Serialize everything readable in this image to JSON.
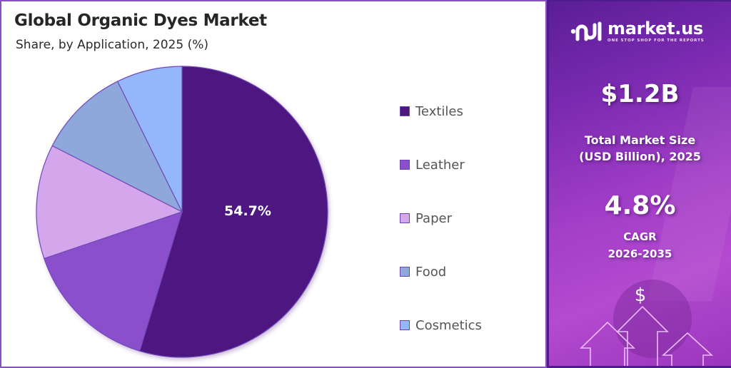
{
  "header": {
    "title": "Global Organic Dyes Market",
    "subtitle": "Share, by Application, 2025 (%)"
  },
  "chart_data": {
    "type": "pie",
    "title": "Global Organic Dyes Market",
    "subtitle": "Share, by Application, 2025 (%)",
    "categories": [
      "Textiles",
      "Leather",
      "Paper",
      "Food",
      "Cosmetics"
    ],
    "values": [
      54.7,
      15.1,
      12.7,
      10.2,
      7.3
    ],
    "colors": [
      "#4d1780",
      "#8b4fcc",
      "#d4a6ec",
      "#8fa8dc",
      "#94b6fa"
    ],
    "data_labels": [
      {
        "category": "Textiles",
        "text": "54.7%"
      }
    ],
    "start_angle": "12 o'clock, clockwise",
    "legend_position": "right"
  },
  "pie_label": "54.7%",
  "legend": {
    "items": [
      {
        "label": "Textiles",
        "color": "#4d1780"
      },
      {
        "label": "Leather",
        "color": "#8b4fcc"
      },
      {
        "label": "Paper",
        "color": "#d4a6ec"
      },
      {
        "label": "Food",
        "color": "#8fa8dc"
      },
      {
        "label": "Cosmetics",
        "color": "#94b6fa"
      }
    ]
  },
  "sidebar": {
    "brand": {
      "name": "market.us",
      "tagline": "ONE STOP SHOP FOR THE REPORTS"
    },
    "market_size": {
      "value": "$1.2B",
      "label_line1": "Total Market Size",
      "label_line2": "(USD Billion), 2025"
    },
    "cagr": {
      "value": "4.8%",
      "label_line1": "CAGR",
      "label_line2": "2026-2035"
    },
    "graphic": {
      "currency_symbol": "$"
    }
  },
  "colors": {
    "frame_border": "#8a4fc4",
    "panel_dark": "#5a1e96",
    "panel_light": "#b44ad0",
    "slice_stroke": "#6f49b8"
  }
}
